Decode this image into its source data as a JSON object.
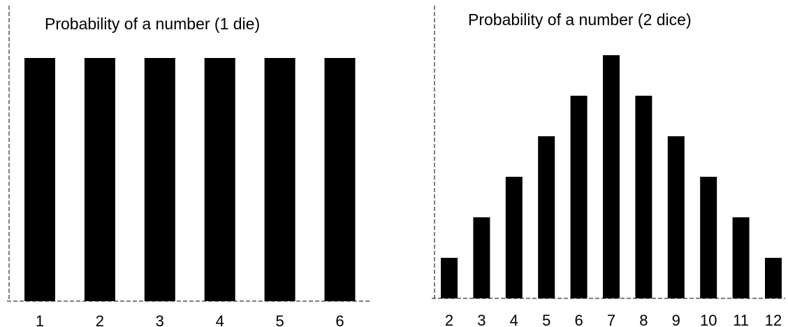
{
  "chart_data": [
    {
      "type": "bar",
      "title": "Probability of a number (1 die)",
      "categories": [
        "1",
        "2",
        "3",
        "4",
        "5",
        "6"
      ],
      "values": [
        6,
        6,
        6,
        6,
        6,
        6
      ],
      "xlabel": "",
      "ylabel": "",
      "ylim": [
        0,
        6
      ],
      "grid": false,
      "bar_color": "#000000"
    },
    {
      "type": "bar",
      "title": "Probability of a number (2 dice)",
      "categories": [
        "2",
        "3",
        "4",
        "5",
        "6",
        "7",
        "8",
        "9",
        "10",
        "11",
        "12"
      ],
      "values": [
        1,
        2,
        3,
        4,
        5,
        6,
        5,
        4,
        3,
        2,
        1
      ],
      "xlabel": "",
      "ylabel": "",
      "ylim": [
        0,
        6
      ],
      "grid": false,
      "bar_color": "#000000"
    }
  ]
}
